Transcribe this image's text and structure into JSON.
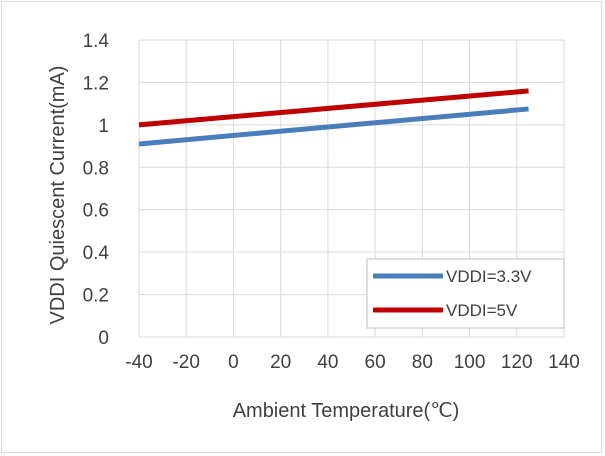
{
  "chart_data": {
    "type": "line",
    "xlabel": "Ambient Temperature(℃)",
    "ylabel": "VDDI Quiescent Current(mA)",
    "xlim": [
      -40,
      140
    ],
    "ylim": [
      0,
      1.4
    ],
    "x_ticks": [
      "-40",
      "-20",
      "0",
      "20",
      "40",
      "60",
      "80",
      "100",
      "120",
      "140"
    ],
    "y_ticks": [
      "0",
      "0.2",
      "0.4",
      "0.6",
      "0.8",
      "1",
      "1.2",
      "1.4"
    ],
    "x_tick_values": [
      -40,
      -20,
      0,
      20,
      40,
      60,
      80,
      100,
      120,
      140
    ],
    "y_tick_values": [
      0,
      0.2,
      0.4,
      0.6,
      0.8,
      1.0,
      1.2,
      1.4
    ],
    "grid": true,
    "legend_position": "bottom-right",
    "series": [
      {
        "name": "VDDI=3.3V",
        "color": "#4a7ebb",
        "x": [
          -40,
          125
        ],
        "y": [
          0.91,
          1.075
        ]
      },
      {
        "name": "VDDI=5V",
        "color": "#c00000",
        "x": [
          -40,
          125
        ],
        "y": [
          1.0,
          1.16
        ]
      }
    ]
  }
}
